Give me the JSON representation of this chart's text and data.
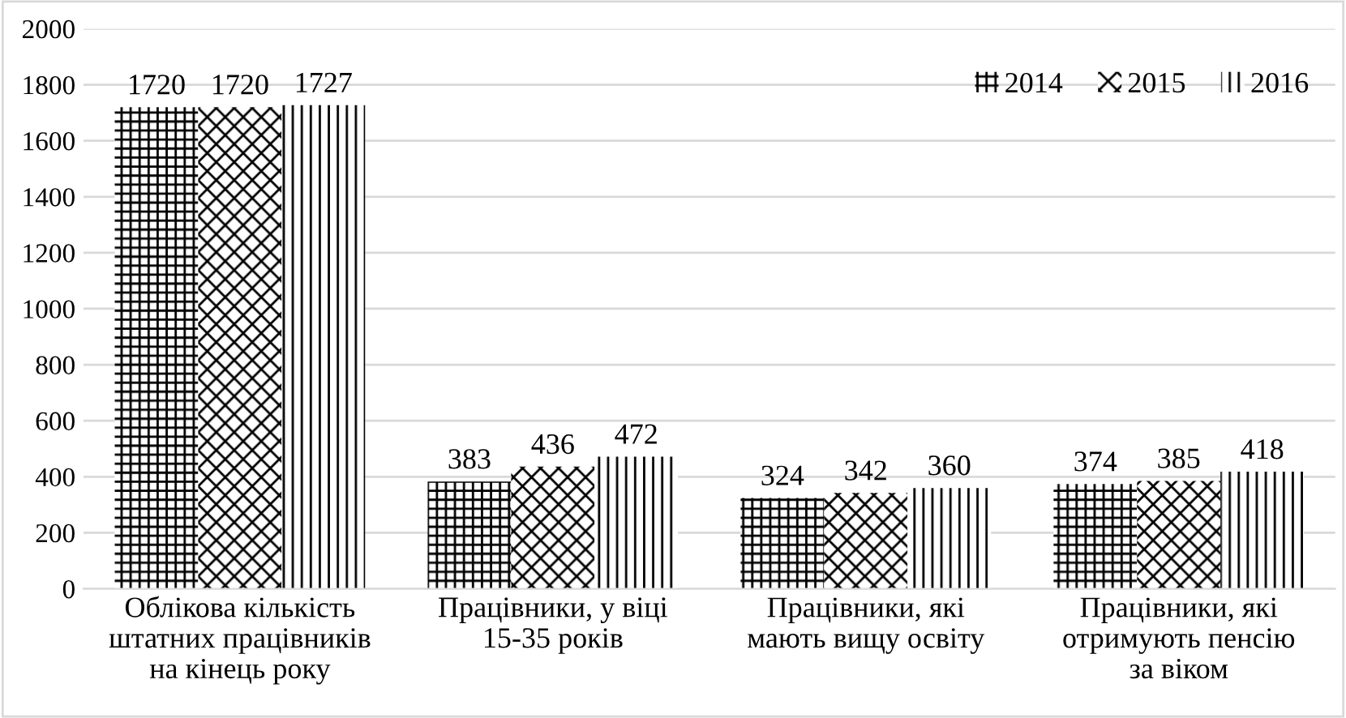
{
  "chart_data": {
    "type": "bar",
    "categories": [
      "Облікова кількість\nштатних працівників\nна кінець року",
      "Працівники, у віці\n15-35 років",
      "Працівники, які\nмають вищу освіту",
      "Працівники, які\nотримують пенсію\nза віком"
    ],
    "series": [
      {
        "name": "2014",
        "color": "#000000",
        "values": [
          1720,
          383,
          324,
          374
        ]
      },
      {
        "name": "2015",
        "color": "#000000",
        "values": [
          1720,
          436,
          342,
          385
        ]
      },
      {
        "name": "2016",
        "color": "#000000",
        "values": [
          1727,
          472,
          360,
          418
        ]
      }
    ],
    "ylim": [
      0,
      2000
    ],
    "yticks": [
      0,
      200,
      400,
      600,
      800,
      1000,
      1200,
      1400,
      1600,
      1800,
      2000
    ],
    "grid": "y",
    "legend": "top right",
    "data_labels": true
  }
}
